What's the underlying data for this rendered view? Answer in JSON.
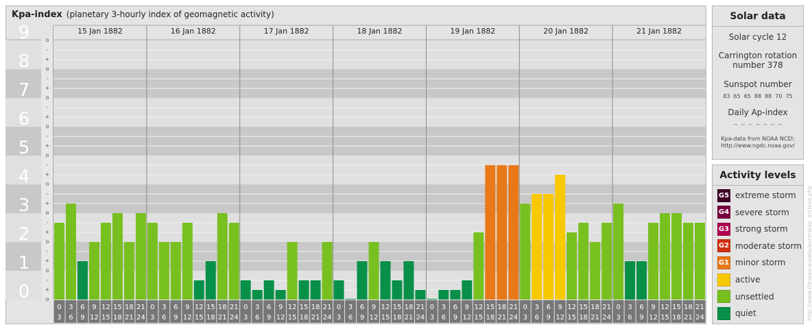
{
  "title": {
    "main": "Kpa-index",
    "sub": "(planetary 3-hourly index of geomagnetic activity)"
  },
  "chart_data": {
    "type": "bar",
    "title": "Kpa-index",
    "subtitle": "(planetary 3-hourly index of geomagnetic activity)",
    "ylim": [
      0,
      9
    ],
    "y_ticks": [
      "0",
      "1",
      "2",
      "3",
      "4",
      "5",
      "6",
      "7",
      "8",
      "9"
    ],
    "third_marks": [
      "o",
      "+",
      "-"
    ],
    "days": [
      "15 Jan 1882",
      "16 Jan 1882",
      "17 Jan 1882",
      "18 Jan 1882",
      "19 Jan 1882",
      "20 Jan 1882",
      "21 Jan 1882"
    ],
    "interval_labels": [
      {
        "top": "0",
        "bottom": "3"
      },
      {
        "top": "3",
        "bottom": "6"
      },
      {
        "top": "6",
        "bottom": "9"
      },
      {
        "top": "9",
        "bottom": "12"
      },
      {
        "top": "12",
        "bottom": "15"
      },
      {
        "top": "15",
        "bottom": "18"
      },
      {
        "top": "18",
        "bottom": "21"
      },
      {
        "top": "21",
        "bottom": "24"
      }
    ],
    "values": [
      [
        2.667,
        3.333,
        1.333,
        2.0,
        2.667,
        3.0,
        2.0,
        3.0
      ],
      [
        2.667,
        2.0,
        2.0,
        2.667,
        0.667,
        1.333,
        3.0,
        2.667
      ],
      [
        0.667,
        0.333,
        0.667,
        0.333,
        2.0,
        0.667,
        0.667,
        2.0
      ],
      [
        0.667,
        0.0,
        1.333,
        2.0,
        1.333,
        0.667,
        1.333,
        0.333
      ],
      [
        0.0,
        0.333,
        0.333,
        0.667,
        2.333,
        4.667,
        4.667,
        4.667
      ],
      [
        3.333,
        3.667,
        3.667,
        4.333,
        2.333,
        2.667,
        2.0,
        2.667
      ],
      [
        3.333,
        1.333,
        1.333,
        2.667,
        3.0,
        3.0,
        2.667,
        2.667
      ]
    ],
    "level_colors": {
      "quiet": "#089048",
      "unsettled": "#78c020",
      "active": "#f8c800",
      "G1": "#e87818",
      "G2": "#d03010",
      "G3": "#b00050",
      "G4": "#780040",
      "G5": "#400028"
    },
    "grid": true
  },
  "solar": {
    "title": "Solar data",
    "cycle": "Solar cycle 12",
    "carrington": "Carrington rotation number 378",
    "sunspot_title": "Sunspot number",
    "sunspots": [
      "83",
      "65",
      "65",
      "88",
      "88",
      "70",
      "75"
    ],
    "ap_title": "Daily Ap-index",
    "ap": [
      "--",
      "--",
      "--",
      "--",
      "--",
      "--",
      "--"
    ],
    "source_line1": "Kpa-data from NOAA NCEI:",
    "source_line2": "http://www.ngdc.noaa.gov/"
  },
  "levels": {
    "title": "Activity levels",
    "items": [
      {
        "code": "G5",
        "label": "extreme storm",
        "color": "#400028"
      },
      {
        "code": "G4",
        "label": "severe storm",
        "color": "#780040"
      },
      {
        "code": "G3",
        "label": "strong storm",
        "color": "#b00050"
      },
      {
        "code": "G2",
        "label": "moderate storm",
        "color": "#d03010"
      },
      {
        "code": "G1",
        "label": "minor storm",
        "color": "#e87818"
      },
      {
        "code": "",
        "label": "active",
        "color": "#f8c800"
      },
      {
        "code": "",
        "label": "unsettled",
        "color": "#78c020"
      },
      {
        "code": "",
        "label": "quiet",
        "color": "#089048"
      }
    ]
  },
  "watermark": "http://www.tfeuseo-eu/eta/aurora/ap_archive.php"
}
